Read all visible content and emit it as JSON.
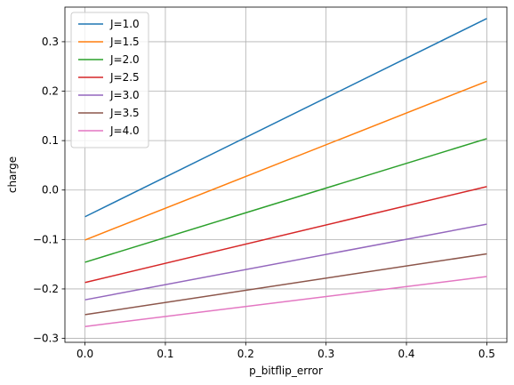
{
  "chart_data": {
    "type": "line",
    "xlabel": "p_bitflip_error",
    "ylabel": "charge",
    "xlim": [
      -0.025,
      0.525
    ],
    "ylim": [
      -0.308,
      0.37
    ],
    "xticks": [
      0.0,
      0.1,
      0.2,
      0.3,
      0.4,
      0.5
    ],
    "xtick_labels": [
      "0.0",
      "0.1",
      "0.2",
      "0.3",
      "0.4",
      "0.5"
    ],
    "yticks": [
      -0.3,
      -0.2,
      -0.1,
      0.0,
      0.1,
      0.2,
      0.3
    ],
    "ytick_labels": [
      "−0.3",
      "−0.2",
      "−0.1",
      "0.0",
      "0.1",
      "0.2",
      "0.3"
    ],
    "grid": true,
    "legend_position": "upper-left",
    "x": [
      0.0,
      0.5
    ],
    "series": [
      {
        "name": "J=1.0",
        "color": "#1f77b4",
        "values": [
          -0.054,
          0.347
        ]
      },
      {
        "name": "J=1.5",
        "color": "#ff7f0e",
        "values": [
          -0.101,
          0.22
        ]
      },
      {
        "name": "J=2.0",
        "color": "#2ca02c",
        "values": [
          -0.146,
          0.104
        ]
      },
      {
        "name": "J=2.5",
        "color": "#d62728",
        "values": [
          -0.187,
          0.007
        ]
      },
      {
        "name": "J=3.0",
        "color": "#9467bd",
        "values": [
          -0.222,
          -0.069
        ]
      },
      {
        "name": "J=3.5",
        "color": "#8c564b",
        "values": [
          -0.252,
          -0.129
        ]
      },
      {
        "name": "J=4.0",
        "color": "#e377c2",
        "values": [
          -0.276,
          -0.175
        ]
      }
    ]
  }
}
